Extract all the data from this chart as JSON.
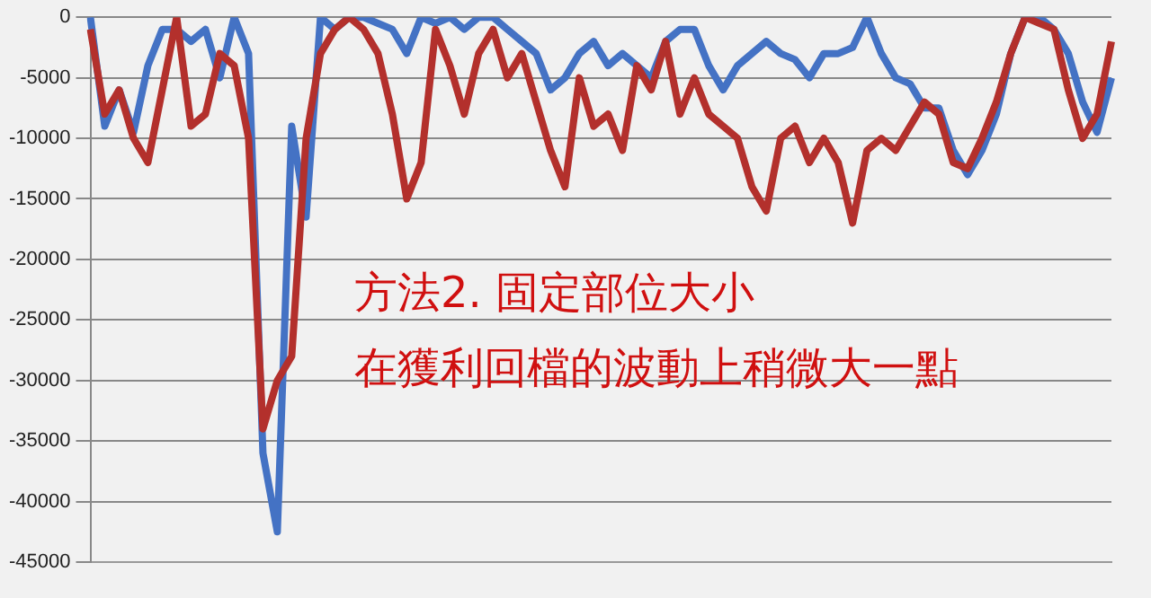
{
  "chart_data": {
    "type": "line",
    "categories": [
      null,
      null,
      null,
      null,
      null,
      null,
      null,
      null,
      null,
      null,
      null,
      null,
      null,
      null,
      null,
      null,
      null,
      null,
      null,
      null,
      null,
      null,
      null,
      null,
      null,
      null,
      null,
      null,
      null,
      null,
      null,
      null,
      null,
      null,
      null,
      null,
      null,
      null,
      null,
      null,
      null,
      null,
      null,
      null,
      null,
      null,
      null,
      null,
      null,
      null,
      null,
      null,
      null,
      null,
      null,
      null,
      null,
      null,
      null,
      null,
      null,
      null,
      null,
      null,
      null,
      null,
      null,
      null,
      null,
      null,
      null,
      null
    ],
    "series": [
      {
        "color": "#4472c4",
        "values": [
          0,
          -9000,
          -6000,
          -9500,
          -4000,
          -1000,
          -1000,
          -2000,
          -1000,
          -5000,
          0,
          -3000,
          -36000,
          -42500,
          -9000,
          -16500,
          0,
          -1000,
          0,
          0,
          -500,
          -1000,
          -3000,
          0,
          -500,
          0,
          -1000,
          0,
          0,
          -1000,
          -2000,
          -3000,
          -6000,
          -5000,
          -3000,
          -2000,
          -4000,
          -3000,
          -4000,
          -5000,
          -2000,
          -1000,
          -1000,
          -4000,
          -6000,
          -4000,
          -3000,
          -2000,
          -3000,
          -3500,
          -5000,
          -3000,
          -3000,
          -2500,
          0,
          -3000,
          -5000,
          -5500,
          -7500,
          -7500,
          -11000,
          -13000,
          -11000,
          -8000,
          -3000,
          0,
          0,
          -1000,
          -3000,
          -7000,
          -9500,
          -5000
        ]
      },
      {
        "color": "#b3302c",
        "values": [
          -1000,
          -8000,
          -6000,
          -10000,
          -12000,
          -6000,
          0,
          -9000,
          -8000,
          -3000,
          -4000,
          -10000,
          -34000,
          -30000,
          -28000,
          -10000,
          -3000,
          -1000,
          0,
          -1000,
          -3000,
          -8000,
          -15000,
          -12000,
          -1000,
          -4000,
          -8000,
          -3000,
          -1000,
          -5000,
          -3000,
          -7000,
          -11000,
          -14000,
          -5000,
          -9000,
          -8000,
          -11000,
          -4000,
          -6000,
          -2000,
          -8000,
          -5000,
          -8000,
          -9000,
          -10000,
          -14000,
          -16000,
          -10000,
          -9000,
          -12000,
          -10000,
          -12000,
          -17000,
          -11000,
          -10000,
          -11000,
          -9000,
          -7000,
          -8000,
          -12000,
          -12500,
          -10000,
          -7000,
          -3000,
          0,
          -500,
          -1000,
          -6000,
          -10000,
          -8000,
          -2000
        ]
      }
    ],
    "ylim": [
      -45000,
      0
    ],
    "yticks": [
      0,
      -5000,
      -10000,
      -15000,
      -20000,
      -25000,
      -30000,
      -35000,
      -40000,
      -45000
    ],
    "grid": "y",
    "tick_labels": "y",
    "legend": false,
    "marker": "none",
    "line_style": "solid",
    "annotations": [
      "方法2. 固定部位大小",
      "在獲利回檔的波動上稍微大一點"
    ]
  }
}
